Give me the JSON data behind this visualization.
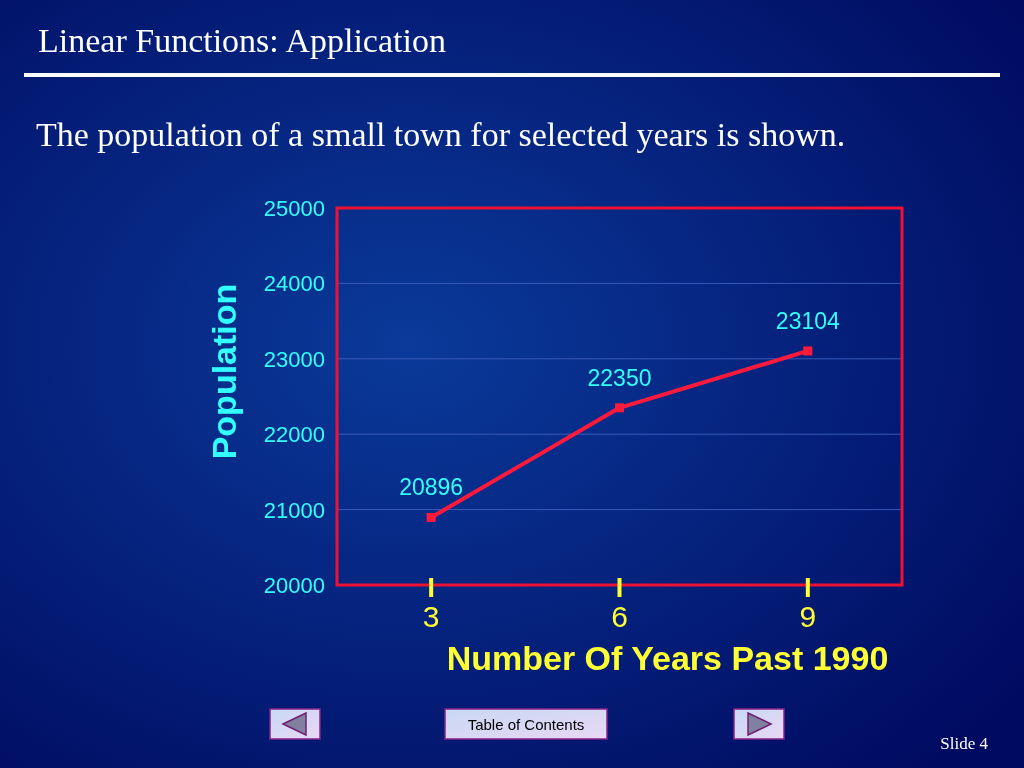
{
  "chart_data": {
    "type": "line",
    "title": "Linear Functions: Application",
    "subtitle": "The population of a small town for selected years is shown.",
    "xlabel": "Number Of Years Past 1990",
    "ylabel": "Population",
    "x": [
      3,
      6,
      9
    ],
    "series": [
      {
        "color": "#ff1a3c",
        "values": [
          20896,
          22350,
          23104
        ]
      }
    ],
    "xlim": [
      1.5,
      10.5
    ],
    "xticks": [
      3,
      6,
      9
    ],
    "ylim": [
      20000,
      25000
    ],
    "yticks": [
      20000,
      21000,
      22000,
      23000,
      24000,
      25000
    ],
    "grid": "y",
    "marker": "square",
    "line_style": "solid",
    "data_labels": true,
    "annotations": [
      "Table of Contents",
      "Slide 4"
    ]
  }
}
